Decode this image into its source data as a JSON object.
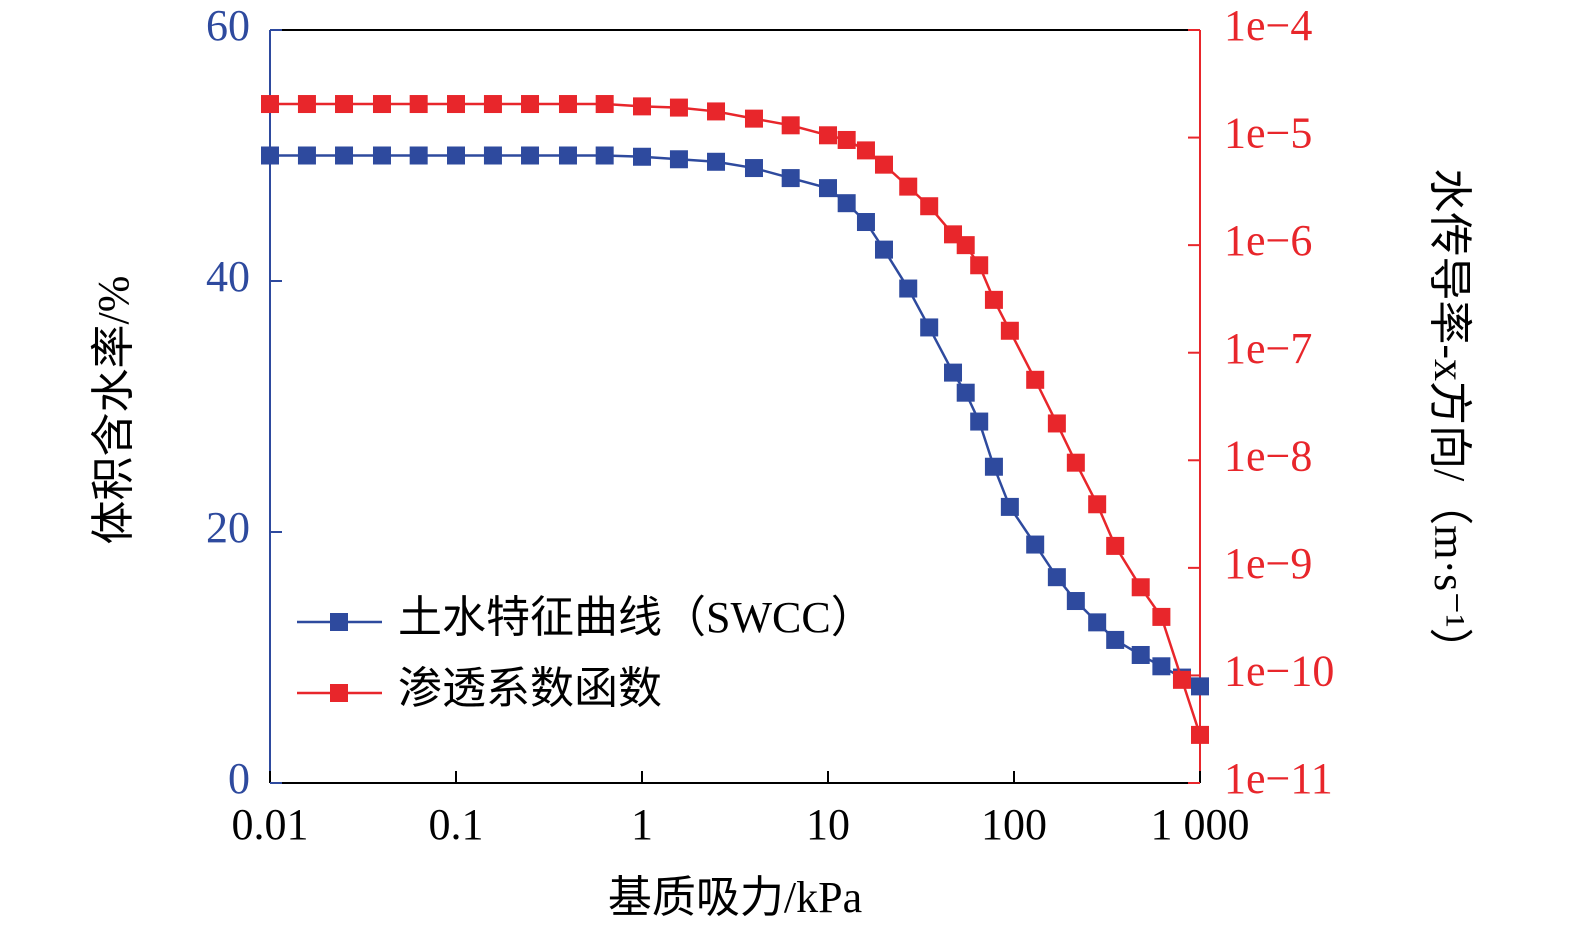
{
  "chart_data": {
    "type": "line",
    "xlabel": "基质吸力/kPa",
    "ylabel": "体积含水率/%",
    "y2label": "水传导率-x方向/（m·s⁻¹）",
    "xscale": "log",
    "y2scale": "log",
    "xlim": [
      0.01,
      1000
    ],
    "xticks": [
      0.01,
      0.1,
      1,
      10,
      100,
      {
        "value": 1000,
        "label": "1 000"
      }
    ],
    "ylim": [
      0,
      60
    ],
    "yticks": [
      0,
      20,
      40,
      60
    ],
    "y2lim": [
      1e-11,
      0.0001
    ],
    "y2ticks": [
      {
        "value": 1e-11,
        "label": "1e−11"
      },
      {
        "value": 1e-10,
        "label": "1e−10"
      },
      {
        "value": 1e-09,
        "label": "1e−9"
      },
      {
        "value": 1e-08,
        "label": "1e−8"
      },
      {
        "value": 1e-07,
        "label": "1e−7"
      },
      {
        "value": 1e-06,
        "label": "1e−6"
      },
      {
        "value": 1e-05,
        "label": "1e−5"
      },
      {
        "value": 0.0001,
        "label": "1e−4"
      }
    ],
    "legend": "lower left",
    "x": [
      0.01,
      0.0158,
      0.025,
      0.04,
      0.063,
      0.1,
      0.158,
      0.25,
      0.4,
      0.63,
      1,
      1.58,
      2.5,
      4,
      6.3,
      10,
      12.6,
      16,
      20,
      27,
      35,
      47,
      55,
      65,
      78,
      95,
      130,
      170,
      215,
      280,
      350,
      480,
      620,
      800,
      1000
    ],
    "series": [
      {
        "name": "土水特征曲线（SWCC）",
        "color": "#2e4a9e",
        "axis": "y",
        "values": [
          50,
          50,
          50,
          50,
          50,
          50,
          50,
          50,
          50,
          50,
          49.9,
          49.7,
          49.5,
          49.0,
          48.2,
          47.4,
          46.2,
          44.7,
          42.5,
          39.4,
          36.3,
          32.7,
          31.1,
          28.8,
          25.2,
          22.0,
          19.0,
          16.4,
          14.5,
          12.8,
          11.4,
          10.2,
          9.3,
          8.4,
          7.7
        ]
      },
      {
        "name": "渗透系数函数",
        "color": "#e8262b",
        "axis": "y2",
        "values": [
          2.05e-05,
          2.05e-05,
          2.05e-05,
          2.05e-05,
          2.05e-05,
          2.05e-05,
          2.05e-05,
          2.05e-05,
          2.05e-05,
          2.05e-05,
          1.95e-05,
          1.9e-05,
          1.75e-05,
          1.5e-05,
          1.3e-05,
          1.05e-05,
          9.5e-06,
          7.6e-06,
          5.6e-06,
          3.5e-06,
          2.3e-06,
          1.26e-06,
          1e-06,
          6.5e-07,
          3.1e-07,
          1.6e-07,
          5.6e-08,
          2.2e-08,
          9.5e-09,
          3.9e-09,
          1.6e-09,
          6.6e-10,
          3.5e-10,
          9.1e-11,
          2.8e-11
        ]
      }
    ]
  }
}
